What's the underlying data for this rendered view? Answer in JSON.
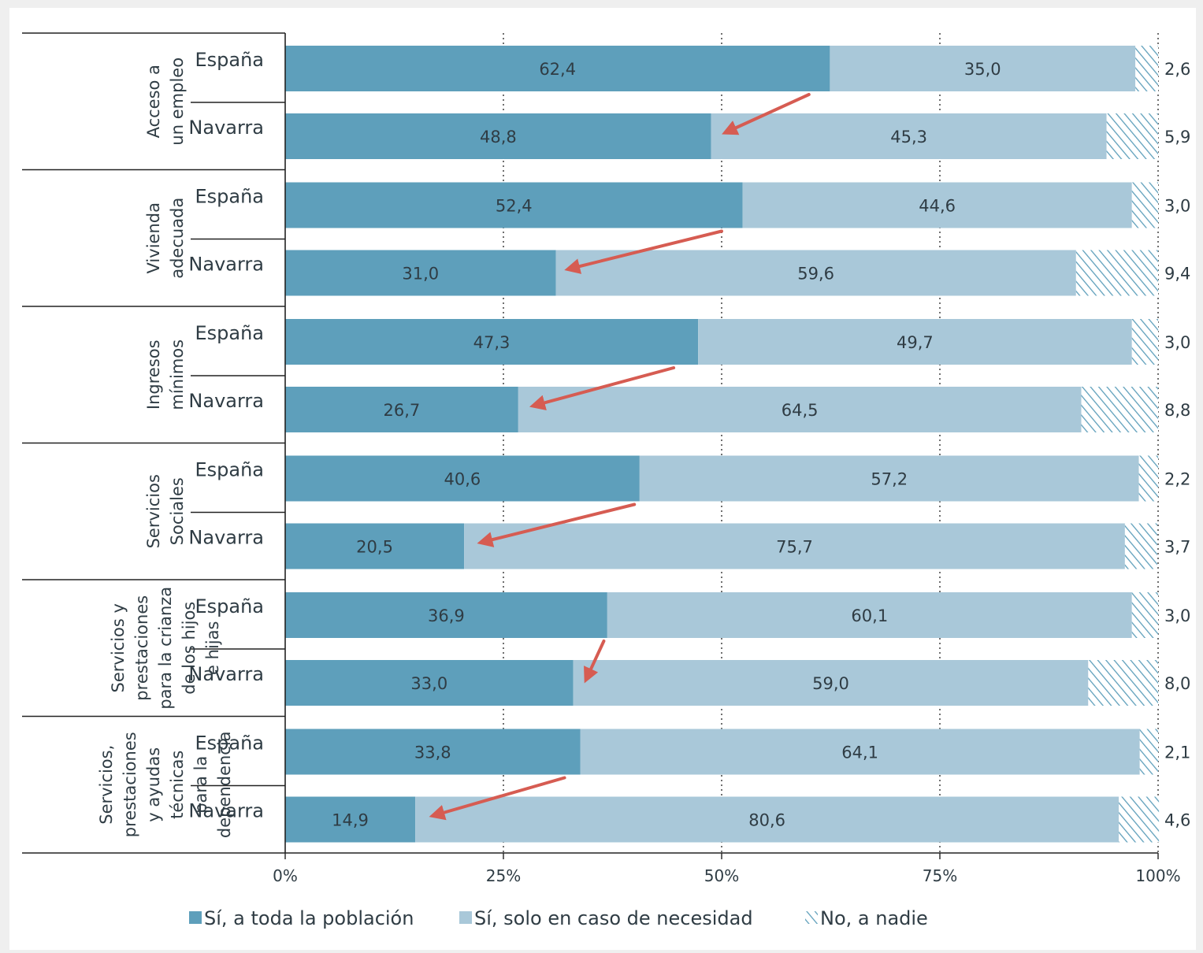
{
  "chart_data": {
    "type": "bar",
    "orientation": "horizontal",
    "stacked": true,
    "percent_scale": true,
    "colors": {
      "si_toda": "#5e9fbb",
      "si_necesidad": "#a9c8d9",
      "no_nadie_hatch": "#5e9fbb",
      "arrow": "#d65c52",
      "text": "#2f3c44"
    },
    "x_ticks": [
      "0%",
      "25%",
      "50%",
      "75%",
      "100%"
    ],
    "xlim": [
      0,
      100
    ],
    "grid": "vertical dotted at 25%, 50%, 75%",
    "legend": {
      "placement": "bottom",
      "items": [
        {
          "key": "si_toda",
          "label": "Sí, a toda la población",
          "style": "solid"
        },
        {
          "key": "si_necesidad",
          "label": "Sí, solo en caso de necesidad",
          "style": "solid"
        },
        {
          "key": "no_nadie",
          "label": "No, a nadie",
          "style": "hatch"
        }
      ]
    },
    "groups": [
      {
        "category_lines": [
          "Acceso a",
          "un empleo"
        ],
        "rows": [
          {
            "region": "España",
            "si_toda": 62.4,
            "si_toda_label": "62,4",
            "si_necesidad": 35.0,
            "si_necesidad_label": "35,0",
            "no_nadie": 2.6,
            "no_nadie_label": "2,6"
          },
          {
            "region": "Navarra",
            "si_toda": 48.8,
            "si_toda_label": "48,8",
            "si_necesidad": 45.3,
            "si_necesidad_label": "45,3",
            "no_nadie": 5.9,
            "no_nadie_label": "5,9"
          }
        ]
      },
      {
        "category_lines": [
          "Vivienda",
          "adecuada"
        ],
        "rows": [
          {
            "region": "España",
            "si_toda": 52.4,
            "si_toda_label": "52,4",
            "si_necesidad": 44.6,
            "si_necesidad_label": "44,6",
            "no_nadie": 3.0,
            "no_nadie_label": "3,0"
          },
          {
            "region": "Navarra",
            "si_toda": 31.0,
            "si_toda_label": "31,0",
            "si_necesidad": 59.6,
            "si_necesidad_label": "59,6",
            "no_nadie": 9.4,
            "no_nadie_label": "9,4"
          }
        ]
      },
      {
        "category_lines": [
          "Ingresos",
          "mínimos"
        ],
        "rows": [
          {
            "region": "España",
            "si_toda": 47.3,
            "si_toda_label": "47,3",
            "si_necesidad": 49.7,
            "si_necesidad_label": "49,7",
            "no_nadie": 3.0,
            "no_nadie_label": "3,0"
          },
          {
            "region": "Navarra",
            "si_toda": 26.7,
            "si_toda_label": "26,7",
            "si_necesidad": 64.5,
            "si_necesidad_label": "64,5",
            "no_nadie": 8.8,
            "no_nadie_label": "8,8"
          }
        ]
      },
      {
        "category_lines": [
          "Servicios",
          "Sociales"
        ],
        "rows": [
          {
            "region": "España",
            "si_toda": 40.6,
            "si_toda_label": "40,6",
            "si_necesidad": 57.2,
            "si_necesidad_label": "57,2",
            "no_nadie": 2.2,
            "no_nadie_label": "2,2"
          },
          {
            "region": "Navarra",
            "si_toda": 20.5,
            "si_toda_label": "20,5",
            "si_necesidad": 75.7,
            "si_necesidad_label": "75,7",
            "no_nadie": 3.7,
            "no_nadie_label": "3,7"
          }
        ]
      },
      {
        "category_lines": [
          "Servicios y",
          "prestaciones",
          "para la crianza",
          "de los hijos",
          "e hijas"
        ],
        "rows": [
          {
            "region": "España",
            "si_toda": 36.9,
            "si_toda_label": "36,9",
            "si_necesidad": 60.1,
            "si_necesidad_label": "60,1",
            "no_nadie": 3.0,
            "no_nadie_label": "3,0"
          },
          {
            "region": "Navarra",
            "si_toda": 33.0,
            "si_toda_label": "33,0",
            "si_necesidad": 59.0,
            "si_necesidad_label": "59,0",
            "no_nadie": 8.0,
            "no_nadie_label": "8,0"
          }
        ]
      },
      {
        "category_lines": [
          "Servicios,",
          "prestaciones",
          "y ayudas",
          "técnicas",
          "para la",
          "dependencia"
        ],
        "rows": [
          {
            "region": "España",
            "si_toda": 33.8,
            "si_toda_label": "33,8",
            "si_necesidad": 64.1,
            "si_necesidad_label": "64,1",
            "no_nadie": 2.1,
            "no_nadie_label": "2,1"
          },
          {
            "region": "Navarra",
            "si_toda": 14.9,
            "si_toda_label": "14,9",
            "si_necesidad": 80.6,
            "si_necesidad_label": "80,6",
            "no_nadie": 4.6,
            "no_nadie_label": "4,6"
          }
        ]
      }
    ],
    "arrows": [
      {
        "group": 0,
        "from_pct": 60.0,
        "to_pct": 50.5
      },
      {
        "group": 1,
        "from_pct": 50.0,
        "to_pct": 32.5
      },
      {
        "group": 2,
        "from_pct": 44.5,
        "to_pct": 28.5
      },
      {
        "group": 3,
        "from_pct": 40.0,
        "to_pct": 22.5
      },
      {
        "group": 4,
        "from_pct": 36.5,
        "to_pct": 34.5
      },
      {
        "group": 5,
        "from_pct": 32.0,
        "to_pct": 17.0
      }
    ]
  }
}
